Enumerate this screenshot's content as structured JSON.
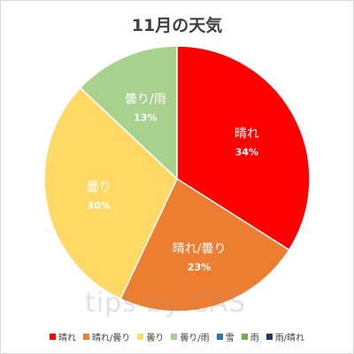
{
  "chart_data": {
    "type": "pie",
    "title": "11月の天気",
    "slices": [
      {
        "label": "晴れ",
        "value": 34,
        "value_label": "34%",
        "color": "#ff0000"
      },
      {
        "label": "晴れ/曇り",
        "value": 23,
        "value_label": "23%",
        "color": "#ed7d31"
      },
      {
        "label": "曇り",
        "value": 30,
        "value_label": "30%",
        "color": "#ffd966"
      },
      {
        "label": "曇り/雨",
        "value": 13,
        "value_label": "13%",
        "color": "#a9d18e"
      },
      {
        "label": "雪",
        "value": 0,
        "value_label": "",
        "color": "#2e75b6"
      },
      {
        "label": "雨",
        "value": 0,
        "value_label": "",
        "color": "#70ad47"
      },
      {
        "label": "雨/晴れ",
        "value": 0,
        "value_label": "",
        "color": "#203864"
      }
    ],
    "legend_position": "bottom"
  },
  "watermark": "tips by CAS"
}
